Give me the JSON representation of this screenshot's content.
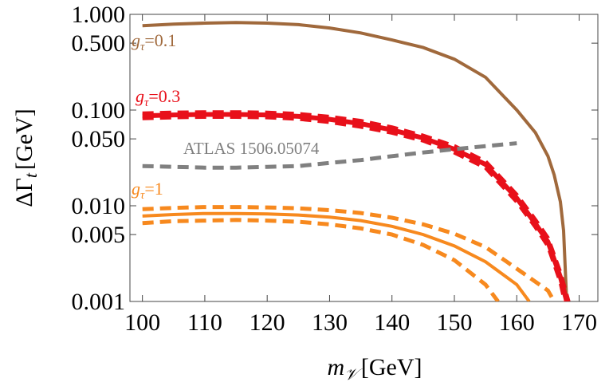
{
  "chart_data": {
    "type": "line",
    "x_label": {
      "main": "m",
      "sub": "𝒱",
      "unit": "[GeV]"
    },
    "y_label": {
      "main": "ΔΓ",
      "sub": "t",
      "unit": "[GeV]"
    },
    "xlim": [
      98,
      173
    ],
    "xticks": [
      100,
      110,
      120,
      130,
      140,
      150,
      160,
      170
    ],
    "ylim": [
      0.001,
      1
    ],
    "log_y": true,
    "yticks": [
      {
        "value": 1,
        "label": "1.000"
      },
      {
        "value": 0.5,
        "label": "0.500"
      },
      {
        "value": 0.1,
        "label": "0.100"
      },
      {
        "value": 0.05,
        "label": "0.050"
      },
      {
        "value": 0.01,
        "label": "0.010"
      },
      {
        "value": 0.005,
        "label": "0.005"
      },
      {
        "value": 0.001,
        "label": "0.001"
      }
    ],
    "series": [
      {
        "label": {
          "main": "g",
          "sub": "τ",
          "rest": "=0.1"
        },
        "color": "#a0693c",
        "dash": false,
        "x": [
          100,
          105,
          110,
          115,
          120,
          125,
          130,
          135,
          140,
          145,
          150,
          155,
          160,
          163,
          165,
          166,
          167,
          167.5,
          168
        ],
        "values": [
          0.76,
          0.79,
          0.81,
          0.82,
          0.81,
          0.78,
          0.72,
          0.64,
          0.54,
          0.45,
          0.34,
          0.22,
          0.1,
          0.058,
          0.033,
          0.021,
          0.011,
          0.0055,
          0.001
        ]
      },
      {
        "label": {
          "main": "g",
          "sub": "τ",
          "rest": "=0.3"
        },
        "color": "#e8101a",
        "dash": false,
        "x": [
          100,
          105,
          110,
          115,
          120,
          125,
          130,
          135,
          140,
          145,
          150,
          155,
          160,
          163,
          165,
          167,
          168
        ],
        "values": [
          0.087,
          0.089,
          0.09,
          0.09,
          0.089,
          0.086,
          0.08,
          0.072,
          0.062,
          0.051,
          0.039,
          0.027,
          0.012,
          0.0065,
          0.0042,
          0.0018,
          0.001
        ]
      },
      {
        "color": "#e8101a",
        "dash": true,
        "x": [
          100,
          105,
          110,
          115,
          120,
          125,
          130,
          135,
          140,
          145,
          150,
          155,
          160,
          163,
          165,
          167,
          168.3
        ],
        "values": [
          0.092,
          0.094,
          0.095,
          0.095,
          0.094,
          0.091,
          0.085,
          0.077,
          0.066,
          0.054,
          0.042,
          0.029,
          0.013,
          0.0071,
          0.0046,
          0.002,
          0.001
        ]
      },
      {
        "color": "#e8101a",
        "dash": true,
        "x": [
          100,
          105,
          110,
          115,
          120,
          125,
          130,
          135,
          140,
          145,
          150,
          155,
          160,
          163,
          165,
          167,
          167.7
        ],
        "values": [
          0.082,
          0.084,
          0.085,
          0.085,
          0.084,
          0.081,
          0.075,
          0.067,
          0.058,
          0.048,
          0.036,
          0.025,
          0.011,
          0.006,
          0.0038,
          0.0016,
          0.001
        ]
      },
      {
        "name": "ATLAS 1506.05074",
        "color": "#808080",
        "dash": true,
        "x": [
          100,
          105,
          110,
          115,
          120,
          125,
          130,
          135,
          140,
          145,
          150,
          155,
          160
        ],
        "values": [
          0.026,
          0.0255,
          0.025,
          0.025,
          0.0255,
          0.026,
          0.028,
          0.03,
          0.033,
          0.036,
          0.039,
          0.042,
          0.045
        ]
      },
      {
        "label": {
          "main": "g",
          "sub": "τ",
          "rest": "=1"
        },
        "color": "#f7891e",
        "dash": false,
        "x": [
          100,
          105,
          110,
          115,
          120,
          125,
          130,
          135,
          140,
          145,
          150,
          155,
          160,
          162
        ],
        "values": [
          0.0078,
          0.0081,
          0.0083,
          0.0083,
          0.0082,
          0.008,
          0.0076,
          0.007,
          0.0061,
          0.005,
          0.0038,
          0.0026,
          0.0015,
          0.001
        ]
      },
      {
        "color": "#f7891e",
        "dash": true,
        "x": [
          100,
          105,
          110,
          115,
          120,
          125,
          130,
          135,
          140,
          145,
          150,
          155,
          160,
          165,
          166
        ],
        "values": [
          0.0092,
          0.0095,
          0.0097,
          0.0097,
          0.0096,
          0.0094,
          0.009,
          0.0084,
          0.0075,
          0.0064,
          0.0051,
          0.0037,
          0.0022,
          0.0013,
          0.001
        ]
      },
      {
        "color": "#f7891e",
        "dash": true,
        "x": [
          100,
          105,
          110,
          115,
          120,
          125,
          130,
          135,
          140,
          145,
          150,
          155,
          157
        ],
        "values": [
          0.0066,
          0.0069,
          0.007,
          0.0071,
          0.007,
          0.0068,
          0.0064,
          0.0058,
          0.005,
          0.0039,
          0.0027,
          0.0015,
          0.001
        ]
      }
    ]
  }
}
